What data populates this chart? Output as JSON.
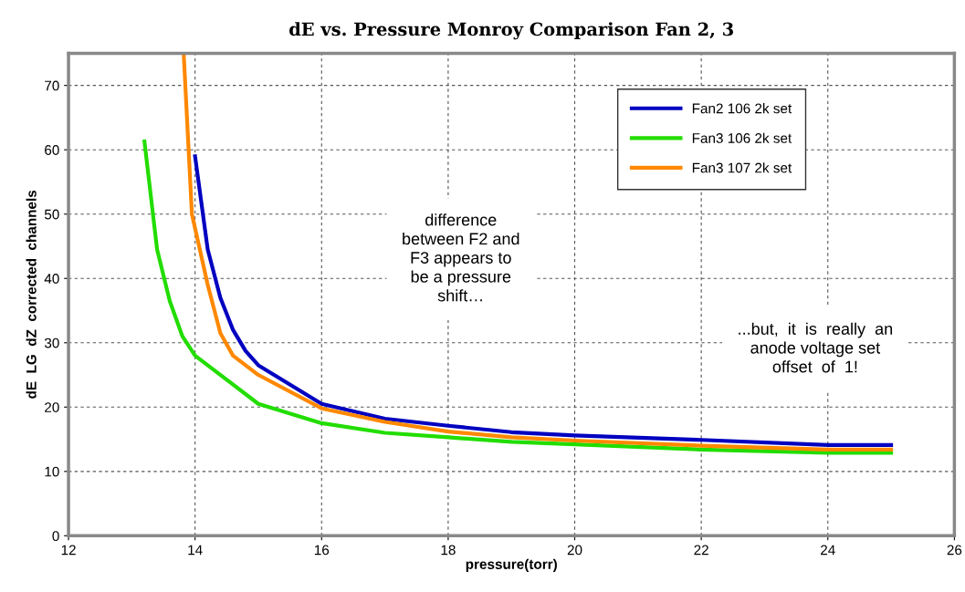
{
  "chart_data": {
    "type": "line",
    "title": "dE vs. Pressure Monroy Comparison Fan 2, 3",
    "xlabel": "pressure(torr)",
    "ylabel": "dE  LG  dZ  corrected  channels",
    "xlim": [
      12,
      26
    ],
    "xticks": [
      12,
      14,
      16,
      18,
      20,
      22,
      24,
      26
    ],
    "ylim": [
      0,
      75
    ],
    "yticks": [
      0,
      10,
      20,
      30,
      40,
      50,
      60,
      70
    ],
    "grid": true,
    "legend": "top right",
    "line_style": "solid",
    "marker": "none",
    "annotations": [
      "difference\nbetween F2 and\nF3 appears to\nbe a pressure\nshift…",
      "...but,  it  is  really  an\nanode voltage set\noffset  of  1!"
    ],
    "series": [
      {
        "name": "Fan2 106 2k set",
        "color": "#0000c0",
        "x": [
          14.0,
          14.2,
          14.4,
          14.6,
          14.8,
          15,
          16,
          17,
          18,
          19,
          20,
          22,
          24,
          25
        ],
        "values": [
          59,
          44.5,
          37,
          32,
          28.7,
          26.5,
          20.5,
          18.2,
          17.1,
          16.1,
          15.6,
          14.9,
          14.1,
          14.1
        ]
      },
      {
        "name": "Fan3 106 2k set",
        "color": "#22dd00",
        "x": [
          13.2,
          13.4,
          13.6,
          13.8,
          14,
          15,
          16,
          17,
          18,
          19,
          20,
          22,
          24,
          25
        ],
        "values": [
          61.3,
          44.5,
          36.5,
          31,
          28,
          20.5,
          17.5,
          16,
          15.3,
          14.6,
          14.2,
          13.4,
          12.9,
          12.9
        ]
      },
      {
        "name": "Fan3 107 2k set",
        "color": "#ff8800",
        "x": [
          13.82,
          13.95,
          14.2,
          14.4,
          14.6,
          15,
          16,
          17,
          18,
          19,
          20,
          22,
          24,
          25
        ],
        "values": [
          75,
          50,
          39,
          31.5,
          28,
          25,
          19.8,
          17.7,
          16.2,
          15.3,
          14.8,
          14.0,
          13.4,
          13.4
        ]
      }
    ]
  }
}
